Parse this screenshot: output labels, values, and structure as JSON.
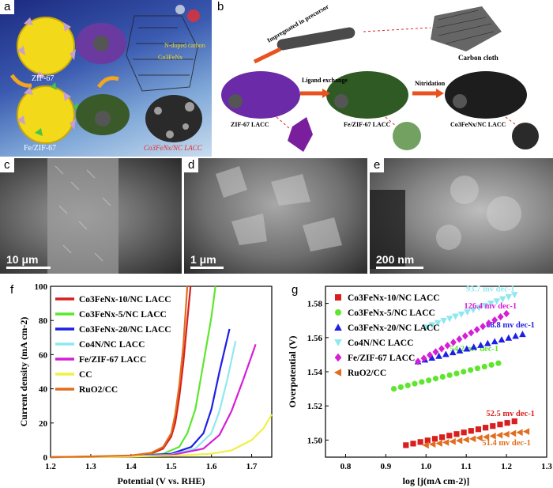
{
  "panels": {
    "a": {
      "label": "a",
      "texts": {
        "zif67": "ZIF-67",
        "fezif67": "Fe/ZIF-67",
        "product": "Co3FeNx/NC LACC",
        "doped1": "N-doped carbon",
        "doped2": "Co3FeNx"
      }
    },
    "b": {
      "label": "b",
      "texts": {
        "carbon_cloth": "Carbon cloth",
        "impregnated": "Impregnated in precursor",
        "ligand": "Ligand exchange",
        "nitridation": "Nitridation",
        "zif_lacc": "ZIF-67 LACC",
        "fezif_lacc": "Fe/ZIF-67 LACC",
        "product_lacc": "Co3FeNx/NC LACC"
      }
    },
    "c": {
      "label": "c",
      "scale": "10 μm"
    },
    "d": {
      "label": "d",
      "scale": "1 μm"
    },
    "e": {
      "label": "e",
      "scale": "200 nm"
    },
    "f": {
      "label": "f"
    },
    "g": {
      "label": "g"
    }
  },
  "colors": {
    "Co3FeNx-10": "#d91e1e",
    "Co3FeNx-5": "#5ee62e",
    "Co3FeNx-20": "#1e1ee6",
    "Co4N": "#8fe8f0",
    "FeZIF": "#d61ed6",
    "CC": "#f0f046",
    "RuO2": "#e06e1e"
  },
  "chart_data": [
    {
      "panel": "f",
      "type": "line",
      "xlabel": "Potential (V vs. RHE)",
      "ylabel": "Current density (mA cm-2)",
      "xlim": [
        1.2,
        1.75
      ],
      "ylim": [
        0,
        100
      ],
      "xticks": [
        "1.2",
        "1.3",
        "1.4",
        "1.5",
        "1.6",
        "1.7"
      ],
      "yticks": [
        "0",
        "20",
        "40",
        "60",
        "80",
        "100"
      ],
      "legend_position": "top-left",
      "series": [
        {
          "name": "Co3FeNx-10/NC LACC",
          "color": "#d91e1e",
          "x": [
            1.2,
            1.3,
            1.4,
            1.45,
            1.48,
            1.5,
            1.51,
            1.52,
            1.53,
            1.54,
            1.548
          ],
          "y": [
            0,
            0.3,
            0.8,
            2,
            5,
            12,
            20,
            35,
            55,
            80,
            100
          ]
        },
        {
          "name": "Co3FeNx-5/NC LACC",
          "color": "#5ee62e",
          "x": [
            1.2,
            1.3,
            1.4,
            1.48,
            1.52,
            1.54,
            1.56,
            1.58,
            1.6,
            1.61
          ],
          "y": [
            0,
            0.3,
            0.6,
            2,
            6,
            14,
            28,
            55,
            82,
            100
          ]
        },
        {
          "name": "Co3FeNx-20/NC LACC",
          "color": "#1e1ee6",
          "x": [
            1.2,
            1.3,
            1.4,
            1.5,
            1.55,
            1.58,
            1.6,
            1.62,
            1.645
          ],
          "y": [
            0,
            0.2,
            0.5,
            2,
            6,
            14,
            28,
            50,
            75
          ]
        },
        {
          "name": "Co4N/NC LACC",
          "color": "#8fe8f0",
          "x": [
            1.2,
            1.3,
            1.4,
            1.5,
            1.56,
            1.6,
            1.62,
            1.64,
            1.66
          ],
          "y": [
            0,
            0.2,
            0.5,
            1.5,
            5,
            14,
            27,
            46,
            68
          ]
        },
        {
          "name": "Fe/ZIF-67 LACC",
          "color": "#d61ed6",
          "x": [
            1.2,
            1.3,
            1.4,
            1.5,
            1.58,
            1.62,
            1.65,
            1.68,
            1.71
          ],
          "y": [
            0,
            0.2,
            0.4,
            1.2,
            5,
            13,
            27,
            46,
            66
          ]
        },
        {
          "name": "CC",
          "color": "#f0f046",
          "x": [
            1.2,
            1.3,
            1.4,
            1.5,
            1.6,
            1.65,
            1.7,
            1.73,
            1.75
          ],
          "y": [
            0,
            0.2,
            0.4,
            0.8,
            2,
            4,
            10,
            17,
            25
          ]
        },
        {
          "name": "RuO2/CC",
          "color": "#e06e1e",
          "x": [
            1.2,
            1.3,
            1.4,
            1.45,
            1.48,
            1.5,
            1.51,
            1.52,
            1.53,
            1.54
          ],
          "y": [
            0,
            0.4,
            1,
            2.5,
            6,
            14,
            25,
            42,
            65,
            100
          ]
        }
      ]
    },
    {
      "panel": "g",
      "type": "scatter",
      "xlabel": "log [j(mA cm-2)]",
      "ylabel": "Overpotential (V)",
      "xlim": [
        0.75,
        1.3
      ],
      "ylim": [
        1.49,
        1.59
      ],
      "xticks": [
        "0.8",
        "0.9",
        "1.0",
        "1.1",
        "1.2",
        "1.3"
      ],
      "yticks": [
        "1.50",
        "1.52",
        "1.54",
        "1.56",
        "1.58"
      ],
      "legend_position": "top-left",
      "series": [
        {
          "name": "Co3FeNx-10/NC LACC",
          "color": "#d91e1e",
          "marker": "square",
          "x_range": [
            0.95,
            1.22
          ],
          "y_range": [
            1.497,
            1.511
          ],
          "tafel": "52.5 mv dec-1"
        },
        {
          "name": "Co3FeNx-5/NC LACC",
          "color": "#5ee62e",
          "marker": "circle",
          "x_range": [
            0.92,
            1.18
          ],
          "y_range": [
            1.53,
            1.545
          ],
          "tafel": "54.2 mv dec-1"
        },
        {
          "name": "Co3FeNx-20/NC LACC",
          "color": "#1e1ee6",
          "marker": "triangle-up",
          "x_range": [
            0.98,
            1.24
          ],
          "y_range": [
            1.546,
            1.562
          ],
          "tafel": "68.8 mv dec-1"
        },
        {
          "name": "Co4N/NC LACC",
          "color": "#8fe8f0",
          "marker": "triangle-down",
          "x_range": [
            1.0,
            1.22
          ],
          "y_range": [
            1.566,
            1.585
          ],
          "tafel": "93.7 mv dec-1"
        },
        {
          "name": "Fe/ZIF-67 LACC",
          "color": "#d61ed6",
          "marker": "diamond",
          "x_range": [
            0.98,
            1.2
          ],
          "y_range": [
            1.546,
            1.574
          ],
          "tafel": "126.4 mv dec-1"
        },
        {
          "name": "RuO2/CC",
          "color": "#e06e1e",
          "marker": "triangle-left",
          "x_range": [
            1.0,
            1.25
          ],
          "y_range": [
            1.497,
            1.505
          ],
          "tafel": "51.4 mv dec-1"
        }
      ]
    }
  ]
}
